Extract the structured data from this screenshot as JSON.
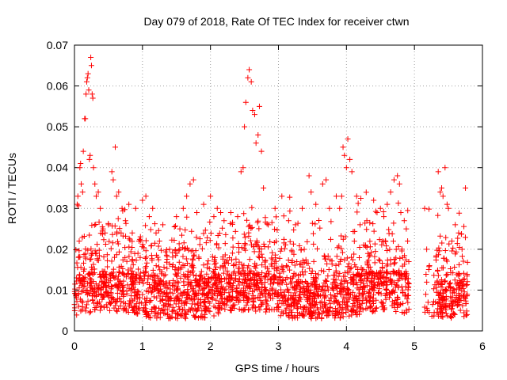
{
  "chart_data": {
    "type": "scatter",
    "title": "Day 079 of 2018, Rate Of TEC Index for receiver ctwn",
    "xlabel": "GPS time / hours",
    "ylabel": "ROTI / TECUs",
    "xlim": [
      0,
      6
    ],
    "ylim": [
      0,
      0.07
    ],
    "xticks": [
      0,
      1,
      2,
      3,
      4,
      5,
      6
    ],
    "xtick_labels": [
      "0",
      "1",
      "2",
      "3",
      "4",
      "5",
      "6"
    ],
    "yticks": [
      0,
      0.01,
      0.02,
      0.03,
      0.04,
      0.05,
      0.06,
      0.07
    ],
    "ytick_labels": [
      "0",
      "0.01",
      "0.02",
      "0.03",
      "0.04",
      "0.05",
      "0.06",
      "0.07"
    ],
    "grid": true,
    "marker": "+",
    "color": "#ff0000",
    "series": [
      {
        "name": "ROTI",
        "points": [
          [
            0.02,
            0.009
          ],
          [
            0.03,
            0.013
          ],
          [
            0.04,
            0.031
          ],
          [
            0.05,
            0.033
          ],
          [
            0.06,
            0.018
          ],
          [
            0.07,
            0.022
          ],
          [
            0.08,
            0.04
          ],
          [
            0.09,
            0.041
          ],
          [
            0.1,
            0.036
          ],
          [
            0.12,
            0.034
          ],
          [
            0.13,
            0.044
          ],
          [
            0.15,
            0.052
          ],
          [
            0.16,
            0.052
          ],
          [
            0.17,
            0.058
          ],
          [
            0.18,
            0.061
          ],
          [
            0.19,
            0.062
          ],
          [
            0.2,
            0.063
          ],
          [
            0.21,
            0.059
          ],
          [
            0.22,
            0.042
          ],
          [
            0.23,
            0.043
          ],
          [
            0.24,
            0.067
          ],
          [
            0.25,
            0.065
          ],
          [
            0.26,
            0.058
          ],
          [
            0.27,
            0.057
          ],
          [
            0.28,
            0.04
          ],
          [
            0.3,
            0.036
          ],
          [
            0.32,
            0.033
          ],
          [
            0.35,
            0.034
          ],
          [
            0.38,
            0.03
          ],
          [
            0.42,
            0.025
          ],
          [
            0.45,
            0.024
          ],
          [
            0.5,
            0.026
          ],
          [
            0.55,
            0.039
          ],
          [
            0.57,
            0.037
          ],
          [
            0.6,
            0.045
          ],
          [
            0.62,
            0.033
          ],
          [
            0.65,
            0.034
          ],
          [
            0.7,
            0.03
          ],
          [
            0.75,
            0.027
          ],
          [
            0.8,
            0.031
          ],
          [
            0.85,
            0.024
          ],
          [
            0.9,
            0.03
          ],
          [
            0.95,
            0.022
          ],
          [
            1.0,
            0.032
          ],
          [
            1.05,
            0.033
          ],
          [
            1.1,
            0.028
          ],
          [
            1.15,
            0.03
          ],
          [
            1.2,
            0.024
          ],
          [
            1.25,
            0.022
          ],
          [
            1.3,
            0.026
          ],
          [
            1.4,
            0.02
          ],
          [
            1.5,
            0.028
          ],
          [
            1.55,
            0.025
          ],
          [
            1.6,
            0.03
          ],
          [
            1.65,
            0.033
          ],
          [
            1.7,
            0.036
          ],
          [
            1.75,
            0.037
          ],
          [
            1.8,
            0.029
          ],
          [
            1.9,
            0.031
          ],
          [
            2.0,
            0.033
          ],
          [
            2.05,
            0.028
          ],
          [
            2.1,
            0.03
          ],
          [
            2.15,
            0.029
          ],
          [
            2.2,
            0.027
          ],
          [
            2.3,
            0.029
          ],
          [
            2.4,
            0.028
          ],
          [
            2.45,
            0.039
          ],
          [
            2.48,
            0.04
          ],
          [
            2.5,
            0.05
          ],
          [
            2.52,
            0.056
          ],
          [
            2.55,
            0.062
          ],
          [
            2.57,
            0.064
          ],
          [
            2.6,
            0.061
          ],
          [
            2.62,
            0.054
          ],
          [
            2.65,
            0.053
          ],
          [
            2.67,
            0.046
          ],
          [
            2.7,
            0.048
          ],
          [
            2.72,
            0.055
          ],
          [
            2.75,
            0.044
          ],
          [
            2.78,
            0.035
          ],
          [
            2.85,
            0.026
          ],
          [
            2.95,
            0.03
          ],
          [
            3.05,
            0.033
          ],
          [
            3.15,
            0.027
          ],
          [
            3.25,
            0.026
          ],
          [
            3.35,
            0.03
          ],
          [
            3.45,
            0.038
          ],
          [
            3.48,
            0.034
          ],
          [
            3.55,
            0.031
          ],
          [
            3.65,
            0.036
          ],
          [
            3.7,
            0.037
          ],
          [
            3.75,
            0.03
          ],
          [
            3.85,
            0.033
          ],
          [
            3.9,
            0.03
          ],
          [
            3.93,
            0.033
          ],
          [
            3.95,
            0.045
          ],
          [
            3.97,
            0.043
          ],
          [
            4.0,
            0.04
          ],
          [
            4.02,
            0.047
          ],
          [
            4.05,
            0.042
          ],
          [
            4.08,
            0.039
          ],
          [
            4.15,
            0.033
          ],
          [
            4.2,
            0.026
          ],
          [
            4.3,
            0.027
          ],
          [
            4.4,
            0.032
          ],
          [
            4.45,
            0.029
          ],
          [
            4.5,
            0.03
          ],
          [
            4.55,
            0.028
          ],
          [
            4.6,
            0.031
          ],
          [
            4.65,
            0.034
          ],
          [
            4.7,
            0.037
          ],
          [
            4.75,
            0.038
          ],
          [
            4.78,
            0.036
          ],
          [
            4.8,
            0.029
          ],
          [
            4.85,
            0.027
          ],
          [
            4.88,
            0.025
          ],
          [
            4.9,
            0.022
          ],
          [
            5.15,
            0.03
          ],
          [
            5.18,
            0.02
          ],
          [
            5.2,
            0.007
          ],
          [
            5.22,
            0.016
          ],
          [
            5.35,
            0.039
          ],
          [
            5.38,
            0.034
          ],
          [
            5.4,
            0.035
          ],
          [
            5.42,
            0.033
          ],
          [
            5.45,
            0.04
          ],
          [
            5.48,
            0.031
          ],
          [
            5.5,
            0.03
          ],
          [
            5.55,
            0.022
          ],
          [
            5.6,
            0.026
          ],
          [
            5.65,
            0.024
          ],
          [
            5.7,
            0.02
          ],
          [
            5.75,
            0.035
          ]
        ]
      }
    ]
  }
}
